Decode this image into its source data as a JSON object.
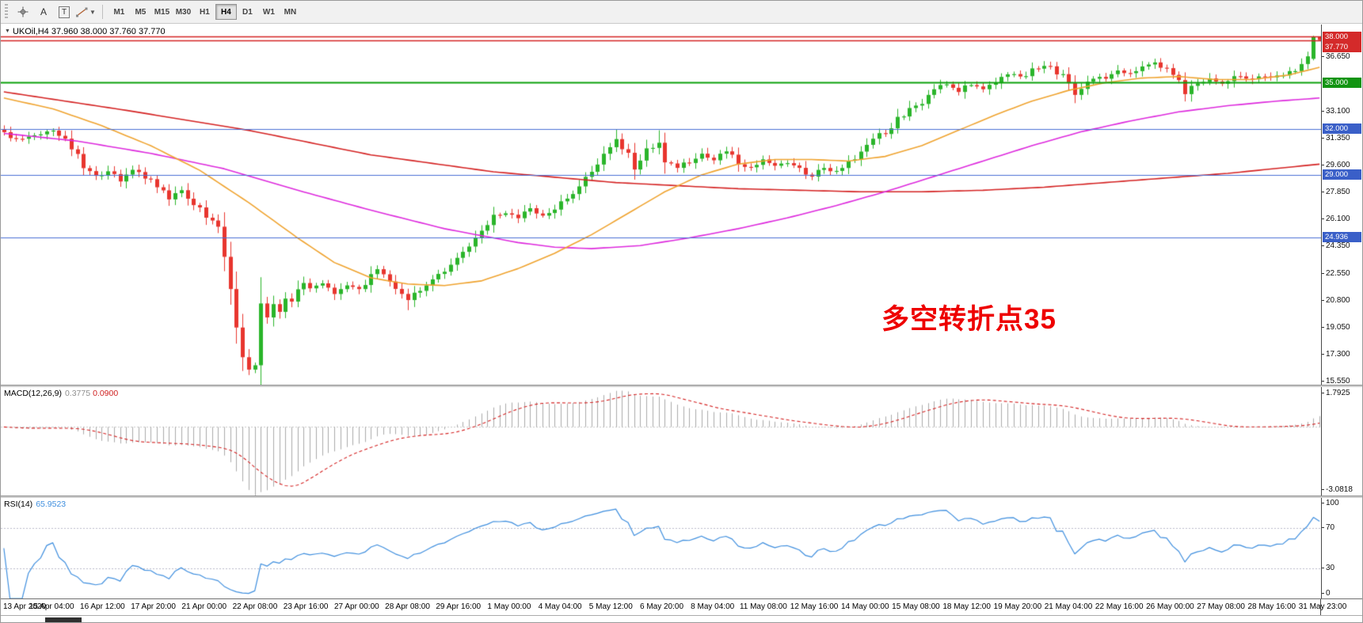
{
  "toolbar": {
    "tools": {
      "a_label": "A",
      "t_label": "T"
    },
    "timeframes": [
      "M1",
      "M5",
      "M15",
      "M30",
      "H1",
      "H4",
      "D1",
      "W1",
      "MN"
    ],
    "active_timeframe": "H4"
  },
  "chart": {
    "symbol_timeframe": "UKOil,H4",
    "ohlc_text": "37.960 38.000 37.760 37.770"
  },
  "chart_data": {
    "type": "candlestick",
    "symbol": "UKOil",
    "timeframe": "H4",
    "ohlc_display": {
      "open": "37.960",
      "high": "38.000",
      "low": "37.760",
      "close": "37.770"
    },
    "annotation": {
      "text": "多空转折点35",
      "color": "#ee0000"
    },
    "colors": {
      "up": "#2ab52a",
      "down": "#e8352e",
      "ma_slow": "#d42222",
      "ma_mid": "#dd2add",
      "ma_fast": "#efa32f",
      "level_blue": "#4a6fd4",
      "level_green": "#0ca00c",
      "level_red": "#d42222",
      "badge_blue": "#3a5fc8",
      "badge_green": "#129412",
      "badge_red": "#d42a2a",
      "macd_hist": "#aaaaaa",
      "macd_signal": "#d42222",
      "rsi": "#3e8ede"
    },
    "price_axis": {
      "min": 15.35,
      "max": 38.78,
      "labels": [
        36.65,
        33.1,
        31.35,
        29.6,
        27.85,
        26.1,
        24.35,
        22.55,
        20.8,
        19.05,
        17.3,
        15.55
      ]
    },
    "level_lines": [
      {
        "value": 38.0,
        "label": "38.000",
        "color": "#d42222",
        "badge": "#d42a2a",
        "width": 1.5
      },
      {
        "value": 35.0,
        "label": "35.000",
        "color": "#0ca00c",
        "badge": "#129412",
        "width": 2
      },
      {
        "value": 32.0,
        "label": "32.000",
        "color": "#4a6fd4",
        "badge": "#3a5fc8",
        "width": 1.2
      },
      {
        "value": 29.0,
        "label": "29.000",
        "color": "#4a6fd4",
        "badge": "#3a5fc8",
        "width": 1.2
      },
      {
        "value": 24.936,
        "label": "24.936",
        "color": "#4a6fd4",
        "badge": "#3a5fc8",
        "width": 1.2
      }
    ],
    "current_price": {
      "value": 37.77,
      "label": "37.770",
      "color": "#d42222",
      "badge": "#d42a2a"
    },
    "bars": 216,
    "close_anchors": [
      [
        0,
        31.7
      ],
      [
        2,
        31.3
      ],
      [
        5,
        31.6
      ],
      [
        8,
        31.9
      ],
      [
        11,
        30.8
      ],
      [
        13,
        29.6
      ],
      [
        15,
        28.9
      ],
      [
        17,
        29.2
      ],
      [
        19,
        28.6
      ],
      [
        21,
        29.3
      ],
      [
        23,
        28.9
      ],
      [
        25,
        28.2
      ],
      [
        27,
        27.5
      ],
      [
        29,
        27.9
      ],
      [
        31,
        27.2
      ],
      [
        33,
        26.3
      ],
      [
        35,
        25.6
      ],
      [
        36,
        24.0
      ],
      [
        37,
        21.5
      ],
      [
        38,
        18.9
      ],
      [
        39,
        17.2
      ],
      [
        40,
        16.4
      ],
      [
        41,
        17.0
      ],
      [
        42,
        20.2
      ],
      [
        43,
        19.7
      ],
      [
        44,
        20.5
      ],
      [
        45,
        20.1
      ],
      [
        46,
        21.0
      ],
      [
        47,
        20.7
      ],
      [
        48,
        21.4
      ],
      [
        49,
        22.0
      ],
      [
        50,
        21.5
      ],
      [
        52,
        21.9
      ],
      [
        54,
        21.3
      ],
      [
        56,
        21.7
      ],
      [
        58,
        21.5
      ],
      [
        60,
        22.6
      ],
      [
        61,
        22.9
      ],
      [
        63,
        22.0
      ],
      [
        65,
        21.3
      ],
      [
        66,
        20.9
      ],
      [
        68,
        21.6
      ],
      [
        70,
        22.3
      ],
      [
        72,
        22.9
      ],
      [
        74,
        23.8
      ],
      [
        76,
        24.4
      ],
      [
        78,
        25.2
      ],
      [
        80,
        26.3
      ],
      [
        82,
        26.6
      ],
      [
        84,
        26.2
      ],
      [
        86,
        26.8
      ],
      [
        88,
        26.4
      ],
      [
        90,
        26.9
      ],
      [
        92,
        27.6
      ],
      [
        94,
        28.3
      ],
      [
        96,
        29.2
      ],
      [
        98,
        30.3
      ],
      [
        100,
        31.3
      ],
      [
        102,
        30.2
      ],
      [
        103,
        29.4
      ],
      [
        105,
        30.6
      ],
      [
        107,
        31.1
      ],
      [
        108,
        29.9
      ],
      [
        110,
        29.4
      ],
      [
        112,
        29.9
      ],
      [
        114,
        30.4
      ],
      [
        116,
        30.0
      ],
      [
        118,
        30.6
      ],
      [
        120,
        29.8
      ],
      [
        122,
        29.4
      ],
      [
        124,
        29.9
      ],
      [
        126,
        29.5
      ],
      [
        128,
        29.8
      ],
      [
        130,
        29.3
      ],
      [
        132,
        29.0
      ],
      [
        134,
        29.4
      ],
      [
        136,
        29.2
      ],
      [
        138,
        29.8
      ],
      [
        140,
        30.6
      ],
      [
        142,
        31.3
      ],
      [
        144,
        31.8
      ],
      [
        146,
        32.6
      ],
      [
        148,
        33.2
      ],
      [
        150,
        33.8
      ],
      [
        152,
        34.6
      ],
      [
        154,
        34.9
      ],
      [
        156,
        34.4
      ],
      [
        158,
        34.9
      ],
      [
        160,
        34.6
      ],
      [
        162,
        35.1
      ],
      [
        164,
        35.6
      ],
      [
        166,
        35.3
      ],
      [
        168,
        35.8
      ],
      [
        170,
        36.2
      ],
      [
        172,
        35.7
      ],
      [
        174,
        35.1
      ],
      [
        175,
        34.2
      ],
      [
        176,
        34.8
      ],
      [
        178,
        35.2
      ],
      [
        180,
        35.4
      ],
      [
        182,
        35.8
      ],
      [
        184,
        35.5
      ],
      [
        186,
        36.0
      ],
      [
        188,
        36.3
      ],
      [
        190,
        35.8
      ],
      [
        192,
        35.2
      ],
      [
        193,
        34.4
      ],
      [
        195,
        34.9
      ],
      [
        197,
        35.3
      ],
      [
        199,
        35.0
      ],
      [
        201,
        35.4
      ],
      [
        203,
        35.2
      ],
      [
        205,
        35.5
      ],
      [
        207,
        35.3
      ],
      [
        209,
        35.5
      ],
      [
        211,
        35.9
      ],
      [
        213,
        36.5
      ],
      [
        215,
        37.8
      ]
    ],
    "spike_lows": [
      {
        "index": 40,
        "price": 15.98
      },
      {
        "index": 66,
        "price": 20.2
      }
    ],
    "spike_highs": [
      {
        "index": 100,
        "price": 31.95
      },
      {
        "index": 107,
        "price": 31.9
      }
    ],
    "last_bars": [
      {
        "o": 36.55,
        "h": 38.05,
        "l": 36.45,
        "c": 37.96
      },
      {
        "o": 37.96,
        "h": 38.0,
        "l": 37.76,
        "c": 37.77
      }
    ],
    "moving_averages": [
      {
        "name": "ma-slow",
        "color": "#d42222",
        "anchors": [
          [
            0,
            34.4
          ],
          [
            20,
            33.2
          ],
          [
            40,
            31.9
          ],
          [
            60,
            30.3
          ],
          [
            80,
            29.2
          ],
          [
            100,
            28.5
          ],
          [
            120,
            28.1
          ],
          [
            140,
            27.9
          ],
          [
            150,
            27.9
          ],
          [
            160,
            28.0
          ],
          [
            170,
            28.2
          ],
          [
            180,
            28.5
          ],
          [
            190,
            28.8
          ],
          [
            200,
            29.1
          ],
          [
            210,
            29.5
          ],
          [
            215,
            29.7
          ]
        ]
      },
      {
        "name": "ma-medium",
        "color": "#dd2add",
        "anchors": [
          [
            0,
            31.7
          ],
          [
            12,
            31.2
          ],
          [
            24,
            30.4
          ],
          [
            36,
            29.4
          ],
          [
            48,
            28.0
          ],
          [
            60,
            26.7
          ],
          [
            72,
            25.5
          ],
          [
            84,
            24.6
          ],
          [
            90,
            24.3
          ],
          [
            96,
            24.2
          ],
          [
            104,
            24.4
          ],
          [
            112,
            24.9
          ],
          [
            120,
            25.5
          ],
          [
            128,
            26.2
          ],
          [
            136,
            27.0
          ],
          [
            144,
            27.9
          ],
          [
            152,
            28.9
          ],
          [
            160,
            29.9
          ],
          [
            168,
            30.9
          ],
          [
            176,
            31.8
          ],
          [
            184,
            32.5
          ],
          [
            192,
            33.1
          ],
          [
            200,
            33.5
          ],
          [
            208,
            33.8
          ],
          [
            215,
            34.0
          ]
        ]
      },
      {
        "name": "ma-fast",
        "color": "#efa32f",
        "anchors": [
          [
            0,
            34.0
          ],
          [
            8,
            33.3
          ],
          [
            16,
            32.2
          ],
          [
            24,
            30.9
          ],
          [
            32,
            29.3
          ],
          [
            40,
            27.2
          ],
          [
            48,
            24.9
          ],
          [
            54,
            23.3
          ],
          [
            60,
            22.3
          ],
          [
            66,
            21.9
          ],
          [
            72,
            21.8
          ],
          [
            78,
            22.1
          ],
          [
            84,
            22.9
          ],
          [
            90,
            23.9
          ],
          [
            96,
            25.1
          ],
          [
            102,
            26.5
          ],
          [
            108,
            27.9
          ],
          [
            114,
            29.0
          ],
          [
            120,
            29.7
          ],
          [
            126,
            30.0
          ],
          [
            132,
            30.0
          ],
          [
            138,
            29.9
          ],
          [
            144,
            30.2
          ],
          [
            150,
            30.9
          ],
          [
            156,
            31.9
          ],
          [
            162,
            32.9
          ],
          [
            168,
            33.8
          ],
          [
            174,
            34.5
          ],
          [
            180,
            35.0
          ],
          [
            186,
            35.3
          ],
          [
            192,
            35.4
          ],
          [
            198,
            35.2
          ],
          [
            204,
            35.2
          ],
          [
            210,
            35.5
          ],
          [
            215,
            36.0
          ]
        ]
      }
    ],
    "macd": {
      "label": "MACD(12,26,9)",
      "value_main": "0.3775",
      "value_signal": "0.0900",
      "fast": 12,
      "slow": 26,
      "signal": 9,
      "axis_max": 1.7925,
      "axis_min": -3.0818,
      "axis_max_label": "1.7925",
      "axis_min_label": "-3.0818"
    },
    "rsi": {
      "label": "RSI(14)",
      "value": "65.9523",
      "period": 14,
      "axis_labels": [
        "100",
        "70",
        "30",
        "0"
      ],
      "axis_values": [
        100,
        70,
        30,
        0
      ],
      "level_lines": [
        70,
        30
      ]
    },
    "time_axis": [
      "13 Apr 2020",
      "15 Apr 04:00",
      "16 Apr 12:00",
      "17 Apr 20:00",
      "21 Apr 00:00",
      "22 Apr 08:00",
      "23 Apr 16:00",
      "27 Apr 00:00",
      "28 Apr 08:00",
      "29 Apr 16:00",
      "1 May 00:00",
      "4 May 04:00",
      "5 May 12:00",
      "6 May 20:00",
      "8 May 04:00",
      "11 May 08:00",
      "12 May 16:00",
      "14 May 00:00",
      "15 May 08:00",
      "18 May 12:00",
      "19 May 20:00",
      "21 May 04:00",
      "22 May 16:00",
      "26 May 00:00",
      "27 May 08:00",
      "28 May 16:00",
      "31 May 23:00"
    ]
  }
}
